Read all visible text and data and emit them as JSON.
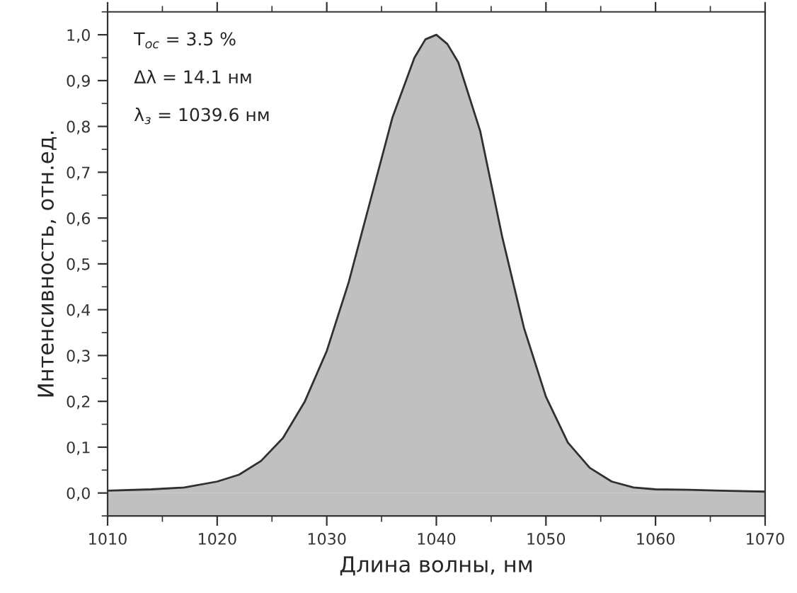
{
  "chart_data": {
    "type": "area",
    "xlabel": "Длина волны, нм",
    "ylabel": "Интенсивность, отн.ед.",
    "annotations": [
      "T$_{ос}$ = 3.5 %",
      "Δλ = 14.1 нм",
      "λ$_{з}$ = 1039.6 нм"
    ],
    "x": [
      1010,
      1014,
      1017,
      1020,
      1022,
      1024,
      1026,
      1028,
      1030,
      1032,
      1034,
      1036,
      1038,
      1039,
      1040,
      1041,
      1042,
      1044,
      1046,
      1048,
      1050,
      1052,
      1054,
      1056,
      1058,
      1060,
      1063,
      1066,
      1070
    ],
    "series": [
      {
        "color": "#c0c0c0",
        "values": [
          0.005,
          0.008,
          0.012,
          0.025,
          0.04,
          0.07,
          0.12,
          0.2,
          0.31,
          0.46,
          0.64,
          0.82,
          0.95,
          0.99,
          1.0,
          0.98,
          0.94,
          0.79,
          0.56,
          0.36,
          0.21,
          0.11,
          0.055,
          0.025,
          0.012,
          0.008,
          0.007,
          0.005,
          0.003
        ]
      }
    ],
    "xlim": [
      1010,
      1070
    ],
    "xticks": [
      1010,
      1020,
      1030,
      1040,
      1050,
      1060,
      1070
    ],
    "ylim": [
      -0.05,
      1.05
    ],
    "yticks": [
      {
        "value": 0.0,
        "label": "0,0"
      },
      {
        "value": 0.1,
        "label": "0,1"
      },
      {
        "value": 0.2,
        "label": "0,2"
      },
      {
        "value": 0.3,
        "label": "0,3"
      },
      {
        "value": 0.4,
        "label": "0,4"
      },
      {
        "value": 0.5,
        "label": "0,5"
      },
      {
        "value": 0.6,
        "label": "0,6"
      },
      {
        "value": 0.7,
        "label": "0,7"
      },
      {
        "value": 0.8,
        "label": "0,8"
      },
      {
        "value": 0.9,
        "label": "0,9"
      },
      {
        "value": 1.0,
        "label": "1,0"
      }
    ],
    "bands": [
      {
        "axis": "y",
        "from": -0.05,
        "to": 0.0,
        "color": "#c0c0c0"
      }
    ],
    "grid": false,
    "legend": false
  }
}
